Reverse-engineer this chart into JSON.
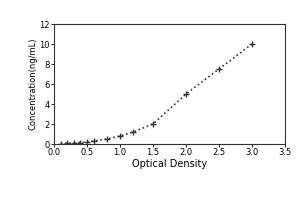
{
  "x_data": [
    0.1,
    0.2,
    0.3,
    0.4,
    0.5,
    0.6,
    0.8,
    1.0,
    1.2,
    1.5,
    2.0,
    2.5,
    3.0
  ],
  "y_data": [
    0.05,
    0.08,
    0.1,
    0.15,
    0.2,
    0.3,
    0.5,
    0.8,
    1.2,
    2.0,
    5.0,
    7.5,
    10.0
  ],
  "xlabel": "Optical Density",
  "ylabel": "Concentration(ng/mL)",
  "xlim": [
    0,
    3.5
  ],
  "ylim": [
    0,
    12
  ],
  "xticks": [
    0,
    0.5,
    1.0,
    1.5,
    2.0,
    2.5,
    3.0,
    3.5
  ],
  "yticks": [
    0,
    2,
    4,
    6,
    8,
    10,
    12
  ],
  "line_color": "#333333",
  "marker": "+",
  "marker_size": 5,
  "marker_color": "#333333",
  "line_style": ":",
  "line_width": 1.2,
  "bg_color": "#ffffff",
  "border_color": "#333333",
  "xlabel_fontsize": 7,
  "ylabel_fontsize": 6,
  "tick_fontsize": 6
}
